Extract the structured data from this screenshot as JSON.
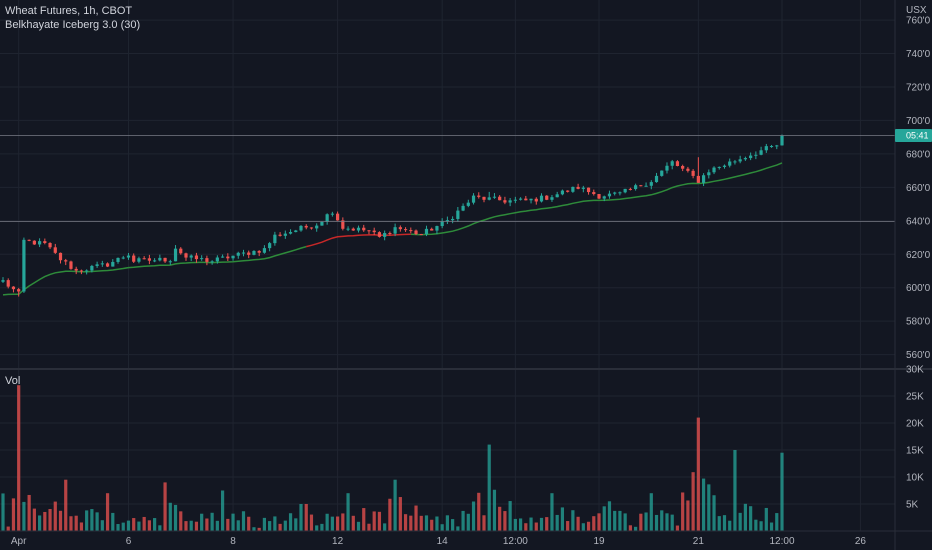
{
  "header": {
    "symbol": "Wheat Futures, 1h, CBOT",
    "indicator": "Belkhayate Iceberg 3.0 (30)",
    "volume_label": "Vol",
    "currency": "USX"
  },
  "colors": {
    "background": "#131722",
    "grid": "#1f2430",
    "up": "#26a69a",
    "down": "#ef5350",
    "iceberg_up": "#2e8b3a",
    "iceberg_down": "#c62828",
    "price_tag": "#26a69a",
    "axis_text": "#b2b5be"
  },
  "chart_data": [
    {
      "type": "candlestick",
      "title": "Wheat Futures, 1h, CBOT",
      "y_unit": "USX",
      "ylim": [
        552,
        772
      ],
      "y_ticks": [
        "560'0",
        "580'0",
        "600'0",
        "620'0",
        "640'0",
        "660'0",
        "680'0",
        "700'0",
        "720'0",
        "740'0",
        "760'0"
      ],
      "x_ticks": [
        "Apr",
        "6",
        "8",
        "12",
        "14",
        "12:00",
        "19",
        "21",
        "12:00",
        "26"
      ],
      "price_path": [
        [
          0,
          604
        ],
        [
          3,
          596
        ],
        [
          4,
          628
        ],
        [
          8,
          626
        ],
        [
          11,
          617
        ],
        [
          14,
          610
        ],
        [
          20,
          614
        ],
        [
          24,
          620
        ],
        [
          25,
          616
        ],
        [
          32,
          617
        ],
        [
          33,
          624
        ],
        [
          35,
          618
        ],
        [
          40,
          616
        ],
        [
          44,
          619
        ],
        [
          50,
          623
        ],
        [
          52,
          631
        ],
        [
          60,
          638
        ],
        [
          63,
          646
        ],
        [
          65,
          636
        ],
        [
          70,
          634
        ],
        [
          72,
          630
        ],
        [
          75,
          636
        ],
        [
          80,
          632
        ],
        [
          85,
          640
        ],
        [
          90,
          654
        ],
        [
          96,
          652
        ],
        [
          100,
          652
        ],
        [
          104,
          654
        ],
        [
          110,
          660
        ],
        [
          114,
          655
        ],
        [
          118,
          656
        ],
        [
          124,
          664
        ],
        [
          128,
          675
        ],
        [
          133,
          664
        ],
        [
          135,
          670
        ],
        [
          140,
          676
        ],
        [
          145,
          682
        ],
        [
          149,
          686
        ]
      ],
      "last_price_level": 691,
      "horizontal_line_level": 639.5,
      "price_tag_label": "05:41",
      "series": [
        {
          "type": "candlestick",
          "values": "hourly OHLC candles following price_path"
        },
        {
          "type": "line",
          "role": "iceberg",
          "smoothing_period": 30
        }
      ]
    },
    {
      "type": "bar",
      "title": "Vol",
      "ylim": [
        0,
        30000
      ],
      "y_ticks": [
        "5K",
        "10K",
        "15K",
        "20K",
        "25K",
        "30K"
      ],
      "spikes": [
        [
          3,
          27000
        ],
        [
          12,
          9500
        ],
        [
          20,
          7000
        ],
        [
          31,
          9000
        ],
        [
          42,
          7500
        ],
        [
          58,
          5000
        ],
        [
          66,
          7000
        ],
        [
          75,
          9500
        ],
        [
          93,
          16000
        ],
        [
          105,
          7000
        ],
        [
          116,
          5500
        ],
        [
          124,
          7000
        ],
        [
          133,
          21000
        ],
        [
          140,
          15000
        ],
        [
          149,
          14500
        ]
      ],
      "baseline_range": [
        300,
        3000
      ]
    }
  ]
}
